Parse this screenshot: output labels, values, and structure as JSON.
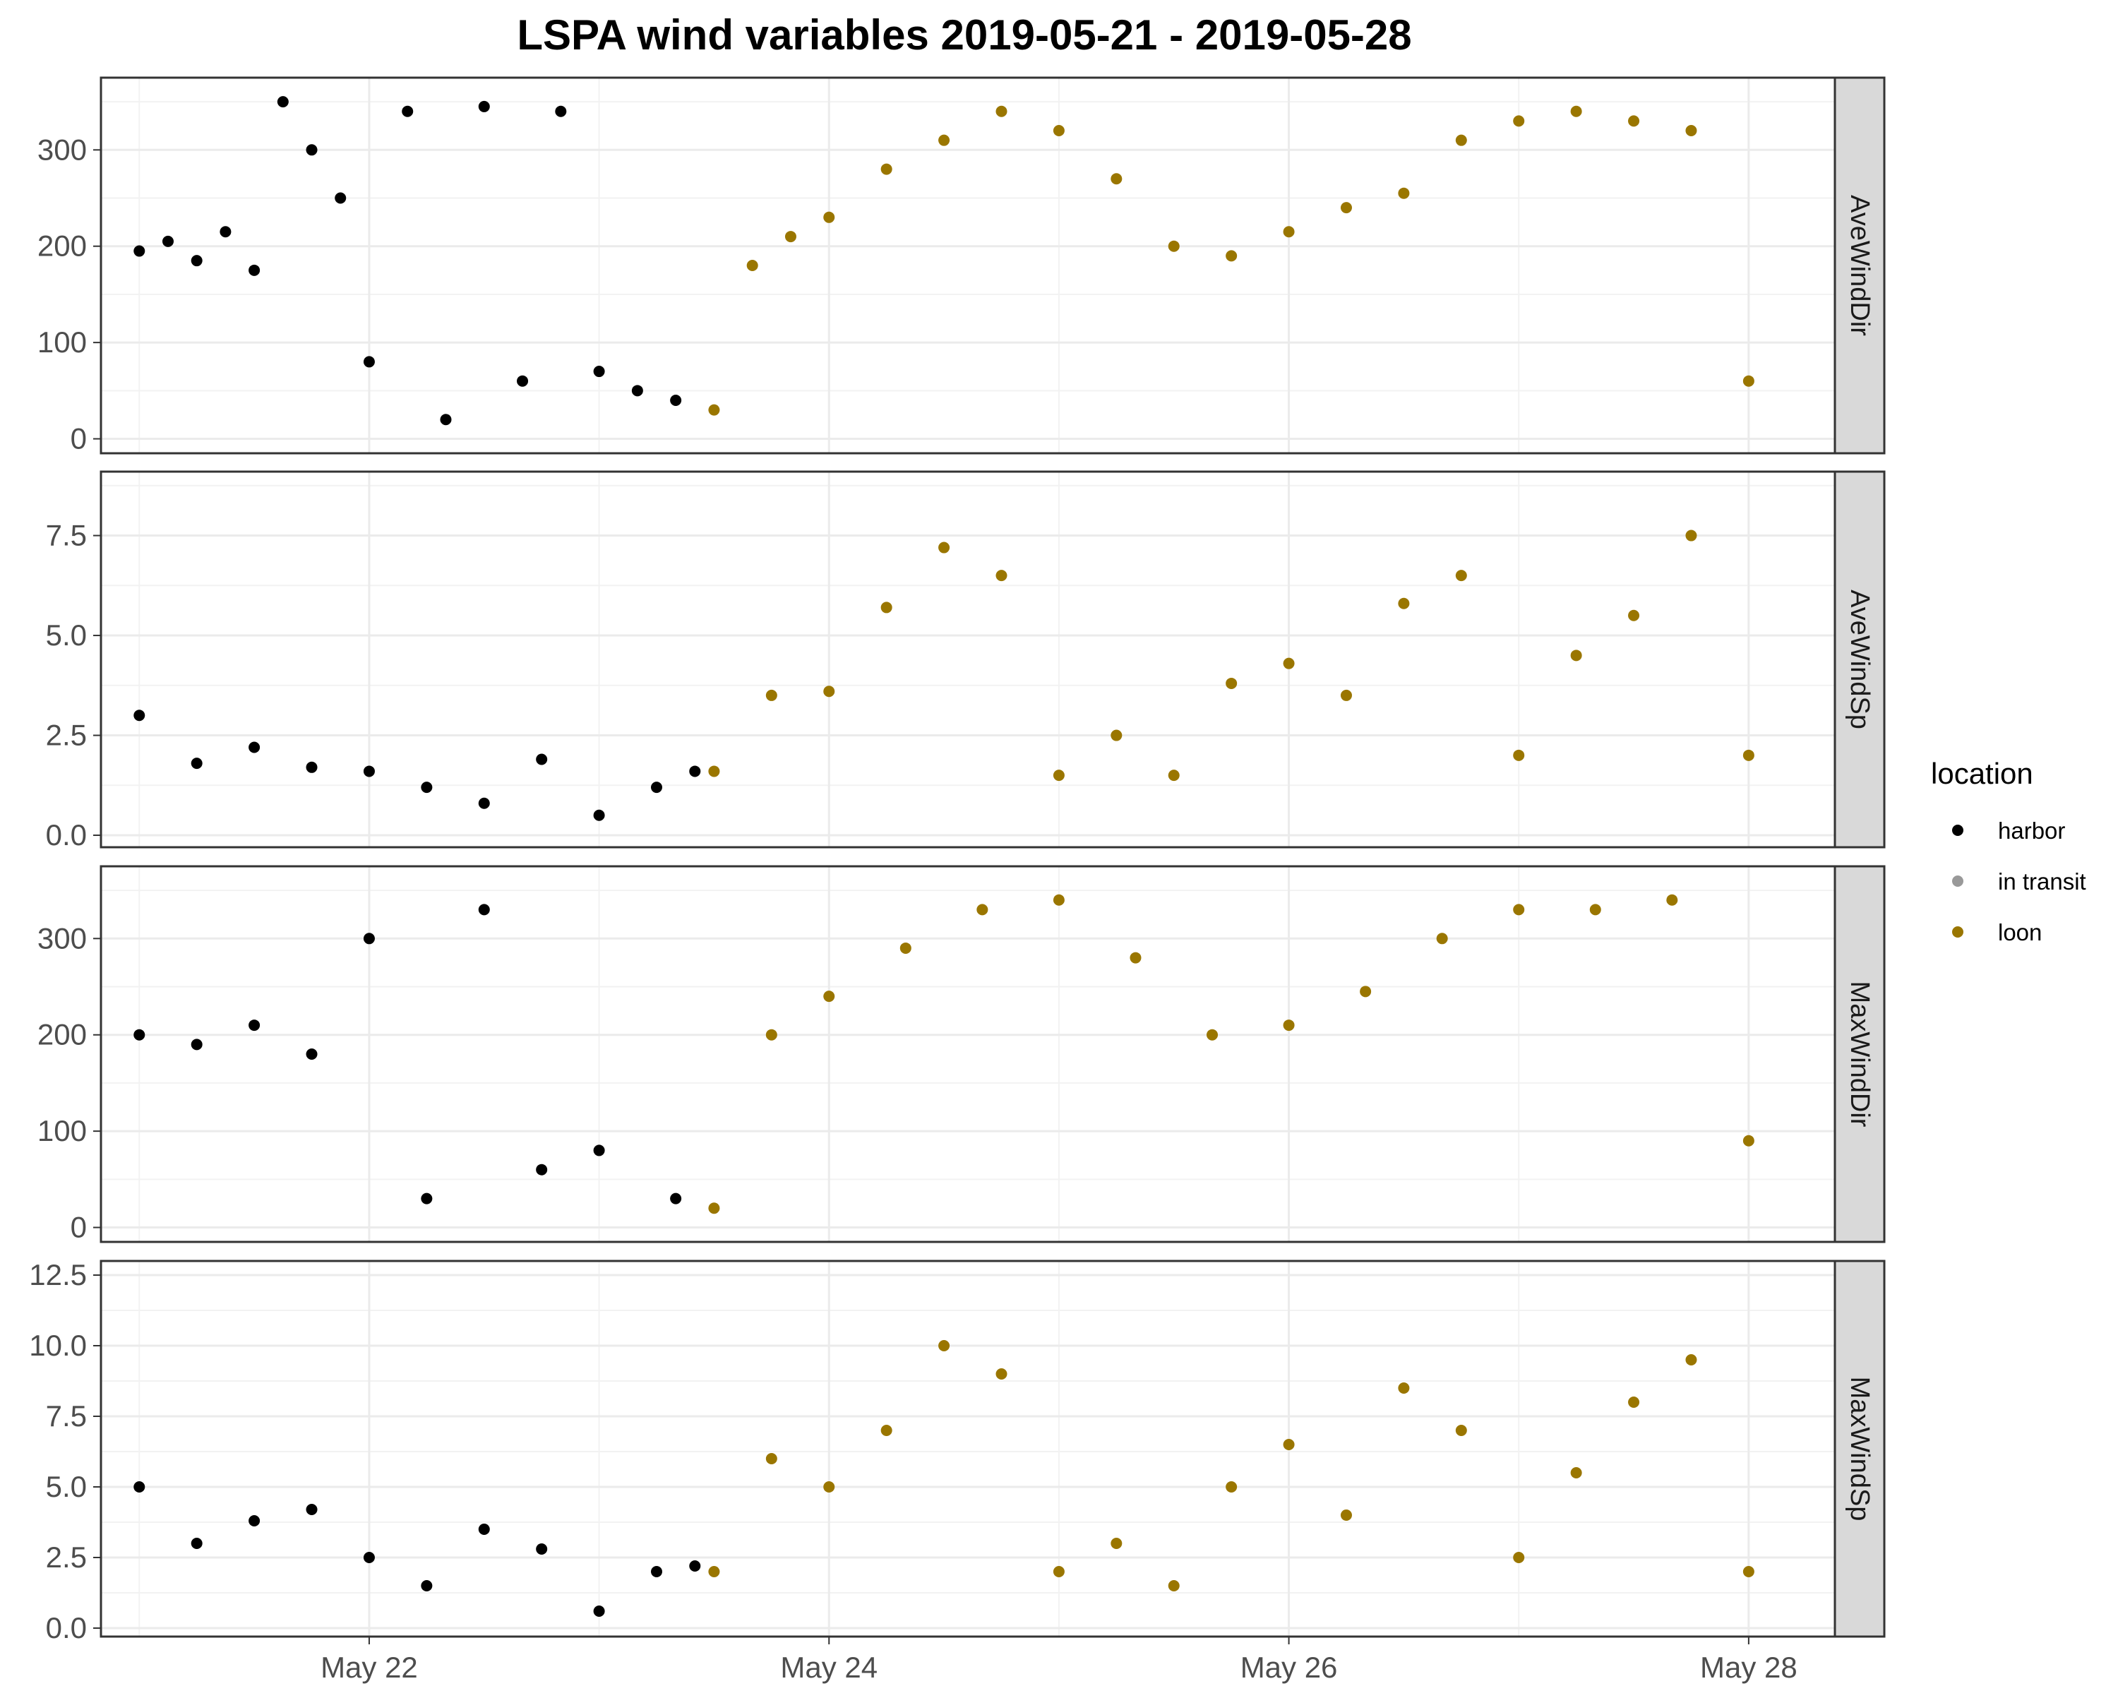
{
  "chart_data": {
    "type": "scatter",
    "title": "LSPA wind variables 2019-05-21 - 2019-05-28",
    "x_ticks": [
      "May 22",
      "May 24",
      "May 26",
      "May 28"
    ],
    "x_tick_dates": [
      "2019-05-22",
      "2019-05-24",
      "2019-05-26",
      "2019-05-28"
    ],
    "xlim": [
      "2019-05-20T20:00",
      "2019-05-28T09:00"
    ],
    "grid": true,
    "legend": {
      "title": "location",
      "placement": "right",
      "entries": [
        {
          "label": "harbor",
          "color": "#000000"
        },
        {
          "label": "in transit",
          "color": "#999999"
        },
        {
          "label": "loon",
          "color": "#9A7600"
        }
      ]
    },
    "panels": [
      {
        "strip": "AveWindDir",
        "ylim": [
          -15,
          375
        ],
        "yticks": [
          0,
          100,
          200,
          300
        ],
        "series": {
          "harbor": [
            {
              "t": "2019-05-21T00:00",
              "y": 195
            },
            {
              "t": "2019-05-21T03:00",
              "y": 205
            },
            {
              "t": "2019-05-21T06:00",
              "y": 185
            },
            {
              "t": "2019-05-21T09:00",
              "y": 215
            },
            {
              "t": "2019-05-21T12:00",
              "y": 175
            },
            {
              "t": "2019-05-21T15:00",
              "y": 350
            },
            {
              "t": "2019-05-21T18:00",
              "y": 300
            },
            {
              "t": "2019-05-21T21:00",
              "y": 250
            },
            {
              "t": "2019-05-22T00:00",
              "y": 80
            },
            {
              "t": "2019-05-22T04:00",
              "y": 340
            },
            {
              "t": "2019-05-22T08:00",
              "y": 20
            },
            {
              "t": "2019-05-22T12:00",
              "y": 345
            },
            {
              "t": "2019-05-22T16:00",
              "y": 60
            },
            {
              "t": "2019-05-22T20:00",
              "y": 340
            },
            {
              "t": "2019-05-23T00:00",
              "y": 70
            },
            {
              "t": "2019-05-23T04:00",
              "y": 50
            },
            {
              "t": "2019-05-23T08:00",
              "y": 40
            }
          ],
          "loon": [
            {
              "t": "2019-05-23T12:00",
              "y": 30
            },
            {
              "t": "2019-05-23T16:00",
              "y": 180
            },
            {
              "t": "2019-05-23T20:00",
              "y": 210
            },
            {
              "t": "2019-05-24T00:00",
              "y": 230
            },
            {
              "t": "2019-05-24T06:00",
              "y": 280
            },
            {
              "t": "2019-05-24T12:00",
              "y": 310
            },
            {
              "t": "2019-05-24T18:00",
              "y": 340
            },
            {
              "t": "2019-05-25T00:00",
              "y": 320
            },
            {
              "t": "2019-05-25T06:00",
              "y": 270
            },
            {
              "t": "2019-05-25T12:00",
              "y": 200
            },
            {
              "t": "2019-05-25T18:00",
              "y": 190
            },
            {
              "t": "2019-05-26T00:00",
              "y": 215
            },
            {
              "t": "2019-05-26T06:00",
              "y": 240
            },
            {
              "t": "2019-05-26T12:00",
              "y": 255
            },
            {
              "t": "2019-05-26T18:00",
              "y": 310
            },
            {
              "t": "2019-05-27T00:00",
              "y": 330
            },
            {
              "t": "2019-05-27T06:00",
              "y": 340
            },
            {
              "t": "2019-05-27T12:00",
              "y": 330
            },
            {
              "t": "2019-05-27T18:00",
              "y": 320
            },
            {
              "t": "2019-05-28T00:00",
              "y": 60
            }
          ]
        }
      },
      {
        "strip": "AveWindSp",
        "ylim": [
          -0.3,
          9.1
        ],
        "yticks": [
          0.0,
          2.5,
          5.0,
          7.5
        ],
        "series": {
          "harbor": [
            {
              "t": "2019-05-21T00:00",
              "y": 3.0
            },
            {
              "t": "2019-05-21T06:00",
              "y": 1.8
            },
            {
              "t": "2019-05-21T12:00",
              "y": 2.2
            },
            {
              "t": "2019-05-21T18:00",
              "y": 1.7
            },
            {
              "t": "2019-05-22T00:00",
              "y": 1.6
            },
            {
              "t": "2019-05-22T06:00",
              "y": 1.2
            },
            {
              "t": "2019-05-22T12:00",
              "y": 0.8
            },
            {
              "t": "2019-05-22T18:00",
              "y": 1.9
            },
            {
              "t": "2019-05-23T00:00",
              "y": 0.5
            },
            {
              "t": "2019-05-23T06:00",
              "y": 1.2
            },
            {
              "t": "2019-05-23T10:00",
              "y": 1.6
            }
          ],
          "loon": [
            {
              "t": "2019-05-23T12:00",
              "y": 1.6
            },
            {
              "t": "2019-05-23T18:00",
              "y": 3.5
            },
            {
              "t": "2019-05-24T00:00",
              "y": 3.6
            },
            {
              "t": "2019-05-24T06:00",
              "y": 5.7
            },
            {
              "t": "2019-05-24T12:00",
              "y": 7.2
            },
            {
              "t": "2019-05-24T18:00",
              "y": 6.5
            },
            {
              "t": "2019-05-25T00:00",
              "y": 1.5
            },
            {
              "t": "2019-05-25T06:00",
              "y": 2.5
            },
            {
              "t": "2019-05-25T12:00",
              "y": 1.5
            },
            {
              "t": "2019-05-25T18:00",
              "y": 3.8
            },
            {
              "t": "2019-05-26T00:00",
              "y": 4.3
            },
            {
              "t": "2019-05-26T06:00",
              "y": 3.5
            },
            {
              "t": "2019-05-26T12:00",
              "y": 5.8
            },
            {
              "t": "2019-05-26T18:00",
              "y": 6.5
            },
            {
              "t": "2019-05-27T00:00",
              "y": 2.0
            },
            {
              "t": "2019-05-27T06:00",
              "y": 4.5
            },
            {
              "t": "2019-05-27T12:00",
              "y": 5.5
            },
            {
              "t": "2019-05-27T18:00",
              "y": 7.5
            },
            {
              "t": "2019-05-28T00:00",
              "y": 2.0
            }
          ]
        }
      },
      {
        "strip": "MaxWindDir",
        "ylim": [
          -15,
          375
        ],
        "yticks": [
          0,
          100,
          200,
          300
        ],
        "series": {
          "harbor": [
            {
              "t": "2019-05-21T00:00",
              "y": 200
            },
            {
              "t": "2019-05-21T06:00",
              "y": 190
            },
            {
              "t": "2019-05-21T12:00",
              "y": 210
            },
            {
              "t": "2019-05-21T18:00",
              "y": 180
            },
            {
              "t": "2019-05-22T00:00",
              "y": 300
            },
            {
              "t": "2019-05-22T06:00",
              "y": 30
            },
            {
              "t": "2019-05-22T12:00",
              "y": 330
            },
            {
              "t": "2019-05-22T18:00",
              "y": 60
            },
            {
              "t": "2019-05-23T00:00",
              "y": 80
            },
            {
              "t": "2019-05-23T08:00",
              "y": 30
            }
          ],
          "loon": [
            {
              "t": "2019-05-23T12:00",
              "y": 20
            },
            {
              "t": "2019-05-23T18:00",
              "y": 200
            },
            {
              "t": "2019-05-24T00:00",
              "y": 240
            },
            {
              "t": "2019-05-24T08:00",
              "y": 290
            },
            {
              "t": "2019-05-24T16:00",
              "y": 330
            },
            {
              "t": "2019-05-25T00:00",
              "y": 340
            },
            {
              "t": "2019-05-25T08:00",
              "y": 280
            },
            {
              "t": "2019-05-25T16:00",
              "y": 200
            },
            {
              "t": "2019-05-26T00:00",
              "y": 210
            },
            {
              "t": "2019-05-26T08:00",
              "y": 245
            },
            {
              "t": "2019-05-26T16:00",
              "y": 300
            },
            {
              "t": "2019-05-27T00:00",
              "y": 330
            },
            {
              "t": "2019-05-27T08:00",
              "y": 330
            },
            {
              "t": "2019-05-27T16:00",
              "y": 340
            },
            {
              "t": "2019-05-28T00:00",
              "y": 90
            }
          ]
        }
      },
      {
        "strip": "MaxWindSp",
        "ylim": [
          -0.3,
          13.0
        ],
        "yticks": [
          0.0,
          2.5,
          5.0,
          7.5,
          10.0,
          12.5
        ],
        "series": {
          "harbor": [
            {
              "t": "2019-05-21T00:00",
              "y": 5.0
            },
            {
              "t": "2019-05-21T06:00",
              "y": 3.0
            },
            {
              "t": "2019-05-21T12:00",
              "y": 3.8
            },
            {
              "t": "2019-05-21T18:00",
              "y": 4.2
            },
            {
              "t": "2019-05-22T00:00",
              "y": 2.5
            },
            {
              "t": "2019-05-22T06:00",
              "y": 1.5
            },
            {
              "t": "2019-05-22T12:00",
              "y": 3.5
            },
            {
              "t": "2019-05-22T18:00",
              "y": 2.8
            },
            {
              "t": "2019-05-23T00:00",
              "y": 0.6
            },
            {
              "t": "2019-05-23T06:00",
              "y": 2.0
            },
            {
              "t": "2019-05-23T10:00",
              "y": 2.2
            }
          ],
          "loon": [
            {
              "t": "2019-05-23T12:00",
              "y": 2.0
            },
            {
              "t": "2019-05-23T18:00",
              "y": 6.0
            },
            {
              "t": "2019-05-24T00:00",
              "y": 5.0
            },
            {
              "t": "2019-05-24T06:00",
              "y": 7.0
            },
            {
              "t": "2019-05-24T12:00",
              "y": 10.0
            },
            {
              "t": "2019-05-24T18:00",
              "y": 9.0
            },
            {
              "t": "2019-05-25T00:00",
              "y": 2.0
            },
            {
              "t": "2019-05-25T06:00",
              "y": 3.0
            },
            {
              "t": "2019-05-25T12:00",
              "y": 1.5
            },
            {
              "t": "2019-05-25T18:00",
              "y": 5.0
            },
            {
              "t": "2019-05-26T00:00",
              "y": 6.5
            },
            {
              "t": "2019-05-26T06:00",
              "y": 4.0
            },
            {
              "t": "2019-05-26T12:00",
              "y": 8.5
            },
            {
              "t": "2019-05-26T18:00",
              "y": 7.0
            },
            {
              "t": "2019-05-27T00:00",
              "y": 2.5
            },
            {
              "t": "2019-05-27T06:00",
              "y": 5.5
            },
            {
              "t": "2019-05-27T12:00",
              "y": 8.0
            },
            {
              "t": "2019-05-27T18:00",
              "y": 9.5
            },
            {
              "t": "2019-05-28T00:00",
              "y": 2.0
            }
          ]
        }
      }
    ]
  }
}
